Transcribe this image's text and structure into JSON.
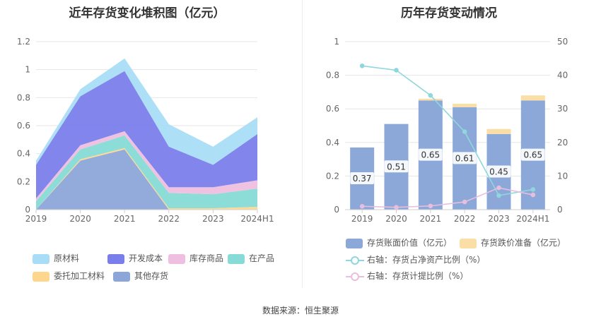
{
  "left_chart": {
    "title": "近年存货变化堆积图（亿元）"
  },
  "right_chart": {
    "title": "历年存货变动情况"
  },
  "source": "数据来源：恒生聚源",
  "colors": {
    "原材料": "#a9ddf7",
    "开发成本": "#7a7eeb",
    "库存商品": "#eebfe0",
    "在产品": "#86dbd6",
    "委托加工材料": "#ffd68e",
    "其他存货": "#8da6d9",
    "bar_main": "#8ba8d8",
    "bar_reserve": "#fbdea5",
    "line_ratio": "#8fd7dc",
    "line_provision": "#e8bede"
  },
  "chart_data": [
    {
      "type": "area",
      "stacked": true,
      "x": [
        "2019",
        "2020",
        "2021",
        "2022",
        "2023",
        "2024H1"
      ],
      "ylim": [
        0,
        1.2
      ],
      "yticks": [
        "0",
        "0.2",
        "0.4",
        "0.6",
        "0.8",
        "1",
        "1.2"
      ],
      "grid": true,
      "legend_position": "bottom",
      "series": [
        {
          "name": "其他存货",
          "values": [
            0.0,
            0.35,
            0.43,
            0.0,
            0.0,
            0.0
          ]
        },
        {
          "name": "委托加工材料",
          "values": [
            0.0,
            0.01,
            0.01,
            0.01,
            0.01,
            0.02
          ]
        },
        {
          "name": "在产品",
          "values": [
            0.06,
            0.07,
            0.09,
            0.11,
            0.1,
            0.13
          ]
        },
        {
          "name": "库存商品",
          "values": [
            0.02,
            0.03,
            0.03,
            0.04,
            0.05,
            0.06
          ]
        },
        {
          "name": "开发成本",
          "values": [
            0.24,
            0.35,
            0.43,
            0.29,
            0.16,
            0.33
          ]
        },
        {
          "name": "原材料",
          "values": [
            0.03,
            0.05,
            0.09,
            0.16,
            0.13,
            0.12
          ]
        }
      ],
      "legend_order": [
        "原材料",
        "开发成本",
        "库存商品",
        "在产品",
        "委托加工材料",
        "其他存货"
      ]
    },
    {
      "type": "bar",
      "stacked": true,
      "categories": [
        "2019",
        "2020",
        "2021",
        "2022",
        "2023",
        "2024H1"
      ],
      "ylim": [
        0,
        1
      ],
      "yticks": [
        "0",
        "0.2",
        "0.4",
        "0.6",
        "0.8",
        "1"
      ],
      "y2lim": [
        0,
        50
      ],
      "y2ticks": [
        "0",
        "10",
        "20",
        "30",
        "40",
        "50"
      ],
      "legend_position": "bottom",
      "series": [
        {
          "name": "存货账面价值（亿元）",
          "values": [
            0.37,
            0.51,
            0.65,
            0.61,
            0.45,
            0.65
          ],
          "labels": [
            "0.37",
            "0.51",
            "0.65",
            "0.61",
            "0.45",
            "0.65"
          ]
        },
        {
          "name": "存货跌价准备（亿元）",
          "values": [
            0.0,
            0.0,
            0.01,
            0.02,
            0.03,
            0.03
          ]
        }
      ],
      "line_series": [
        {
          "name": "右轴：存货占净资产比例（%）",
          "axis": "right",
          "values": [
            42.8,
            41.5,
            34.0,
            23.2,
            4.2,
            6.0
          ]
        },
        {
          "name": "右轴：存货计提比例（%）",
          "axis": "right",
          "values": [
            1.0,
            0.7,
            1.1,
            2.3,
            6.5,
            4.4
          ]
        }
      ]
    }
  ]
}
